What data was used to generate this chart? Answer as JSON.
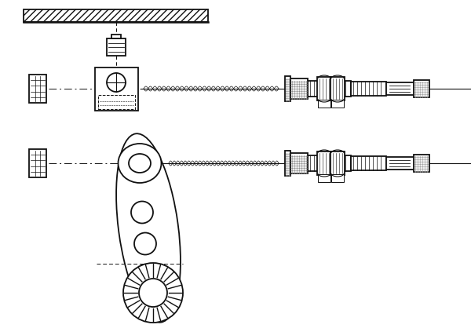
{
  "bg_color": "#ffffff",
  "line_color": "#111111",
  "fig_width": 6.0,
  "fig_height": 4.23,
  "dpi": 100
}
